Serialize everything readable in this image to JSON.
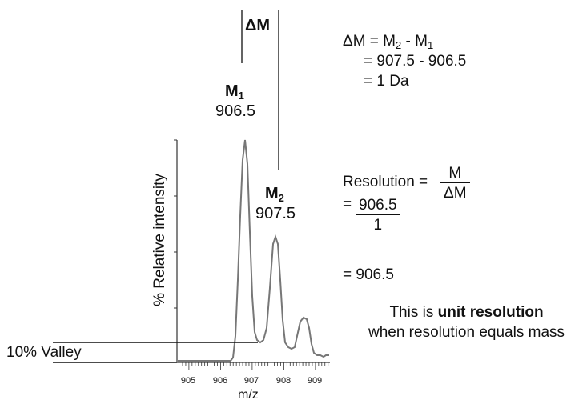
{
  "spectrum": {
    "y_label": "% Relative intensity",
    "x_label": "m/z",
    "x_ticks": [
      "905",
      "906",
      "907",
      "908",
      "909"
    ],
    "valley_label": "10% Valley"
  },
  "peaks": {
    "m1": {
      "symbol": "M",
      "subscript": "1",
      "value": "906.5"
    },
    "m2": {
      "symbol": "M",
      "subscript": "2",
      "value": "907.5"
    },
    "delta_label": "ΔM"
  },
  "equations": {
    "delta_line1_prefix": "ΔM = M",
    "delta_line1_sub2": "2",
    "delta_line1_mid": " - M",
    "delta_line1_sub1": "1",
    "delta_line2": "= 907.5 - 906.5",
    "delta_line3": "= 1 Da",
    "resolution_label": "Resolution =",
    "resolution_num": "M",
    "resolution_den": "ΔM",
    "step_eq": "=",
    "step_num": "906.5",
    "step_den": "1",
    "result": "= 906.5"
  },
  "note": {
    "line1_prefix": "This is ",
    "line1_bold": "unit resolution",
    "line2": "when resolution equals mass"
  }
}
